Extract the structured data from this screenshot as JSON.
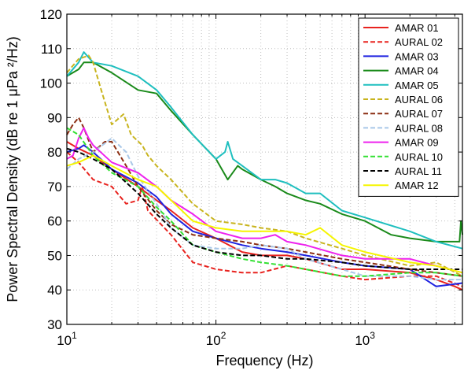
{
  "chart_data": {
    "type": "line",
    "xscale": "log",
    "xlabel": "Frequency (Hz)",
    "ylabel": "Power Spectral Density (dB re 1 μPa ²/Hz)",
    "xlim": [
      10,
      4500
    ],
    "ylim": [
      30,
      120
    ],
    "grid": true,
    "legend_position": "top-right",
    "x_ticks": [
      {
        "value": 10,
        "base": "10",
        "exp": "1"
      },
      {
        "value": 100,
        "base": "10",
        "exp": "2"
      },
      {
        "value": 1000,
        "base": "10",
        "exp": "3"
      }
    ],
    "y_ticks": [
      30,
      40,
      50,
      60,
      70,
      80,
      90,
      100,
      110,
      120
    ],
    "series": [
      {
        "name": "AMAR 01",
        "color": "#e8231f",
        "dash": "solid",
        "points": [
          [
            10,
            83
          ],
          [
            12,
            81
          ],
          [
            15,
            79
          ],
          [
            20,
            75
          ],
          [
            30,
            70
          ],
          [
            40,
            66
          ],
          [
            50,
            63
          ],
          [
            70,
            58
          ],
          [
            100,
            55
          ],
          [
            150,
            51
          ],
          [
            200,
            50
          ],
          [
            300,
            50
          ],
          [
            400,
            49
          ],
          [
            700,
            46
          ],
          [
            1000,
            46
          ],
          [
            2000,
            45
          ],
          [
            3000,
            43
          ],
          [
            4000,
            41
          ],
          [
            4500,
            40
          ]
        ]
      },
      {
        "name": "AURAL 02",
        "color": "#e8231f",
        "dash": "dashed",
        "points": [
          [
            10,
            80
          ],
          [
            12,
            77
          ],
          [
            15,
            72
          ],
          [
            20,
            70
          ],
          [
            25,
            65
          ],
          [
            30,
            66
          ],
          [
            32,
            70
          ],
          [
            35,
            63
          ],
          [
            50,
            56
          ],
          [
            70,
            48
          ],
          [
            100,
            46
          ],
          [
            150,
            45
          ],
          [
            200,
            45
          ],
          [
            300,
            47
          ],
          [
            400,
            46
          ],
          [
            700,
            44
          ],
          [
            1000,
            43
          ],
          [
            2000,
            44
          ],
          [
            3000,
            44
          ],
          [
            4500,
            41
          ]
        ]
      },
      {
        "name": "AMAR 03",
        "color": "#1f22e0",
        "dash": "solid",
        "points": [
          [
            10,
            80
          ],
          [
            12,
            81
          ],
          [
            13,
            82
          ],
          [
            15,
            80
          ],
          [
            20,
            75
          ],
          [
            30,
            71
          ],
          [
            40,
            67
          ],
          [
            50,
            62
          ],
          [
            70,
            57
          ],
          [
            100,
            55
          ],
          [
            150,
            53
          ],
          [
            200,
            52
          ],
          [
            300,
            51
          ],
          [
            400,
            50
          ],
          [
            700,
            48
          ],
          [
            1000,
            47
          ],
          [
            2000,
            46
          ],
          [
            3000,
            41
          ],
          [
            4500,
            42
          ]
        ]
      },
      {
        "name": "AMAR 04",
        "color": "#1a8a1a",
        "dash": "solid",
        "points": [
          [
            10,
            102
          ],
          [
            12,
            104
          ],
          [
            13,
            106
          ],
          [
            15,
            106
          ],
          [
            20,
            103
          ],
          [
            30,
            98
          ],
          [
            40,
            97
          ],
          [
            50,
            92
          ],
          [
            70,
            85
          ],
          [
            100,
            78
          ],
          [
            120,
            72
          ],
          [
            140,
            76
          ],
          [
            150,
            75
          ],
          [
            200,
            72
          ],
          [
            250,
            70
          ],
          [
            300,
            68
          ],
          [
            400,
            66
          ],
          [
            500,
            65
          ],
          [
            700,
            62
          ],
          [
            1000,
            60
          ],
          [
            1500,
            56
          ],
          [
            2000,
            55
          ],
          [
            3000,
            54
          ],
          [
            4300,
            54
          ],
          [
            4400,
            60
          ],
          [
            4500,
            56
          ]
        ]
      },
      {
        "name": "AMAR 05",
        "color": "#1fbfbf",
        "dash": "solid",
        "points": [
          [
            10,
            102
          ],
          [
            12,
            106
          ],
          [
            13,
            109
          ],
          [
            15,
            106
          ],
          [
            20,
            105
          ],
          [
            30,
            102
          ],
          [
            40,
            98
          ],
          [
            50,
            93
          ],
          [
            70,
            85
          ],
          [
            100,
            78
          ],
          [
            115,
            80
          ],
          [
            120,
            83
          ],
          [
            130,
            78
          ],
          [
            150,
            76
          ],
          [
            200,
            72
          ],
          [
            250,
            72
          ],
          [
            300,
            71
          ],
          [
            400,
            68
          ],
          [
            500,
            68
          ],
          [
            700,
            63
          ],
          [
            1000,
            61
          ],
          [
            2000,
            57
          ],
          [
            3000,
            54
          ],
          [
            4500,
            52
          ]
        ]
      },
      {
        "name": "AURAL 06",
        "color": "#c8b41e",
        "dash": "dashed",
        "points": [
          [
            10,
            103
          ],
          [
            12,
            107
          ],
          [
            14,
            108
          ],
          [
            15,
            106
          ],
          [
            17,
            98
          ],
          [
            20,
            88
          ],
          [
            24,
            91
          ],
          [
            27,
            85
          ],
          [
            32,
            82
          ],
          [
            35,
            79
          ],
          [
            40,
            76
          ],
          [
            50,
            72
          ],
          [
            70,
            65
          ],
          [
            100,
            60
          ],
          [
            150,
            59
          ],
          [
            200,
            58
          ],
          [
            300,
            57
          ],
          [
            400,
            55
          ],
          [
            700,
            52
          ],
          [
            1000,
            50
          ],
          [
            2000,
            47
          ],
          [
            3000,
            48
          ],
          [
            4500,
            44
          ]
        ]
      },
      {
        "name": "AURAL 07",
        "color": "#8b2e12",
        "dash": "dashed",
        "points": [
          [
            10,
            85
          ],
          [
            11,
            88
          ],
          [
            12,
            90
          ],
          [
            13,
            87
          ],
          [
            15,
            80
          ],
          [
            18,
            83
          ],
          [
            20,
            83
          ],
          [
            25,
            76
          ],
          [
            30,
            70
          ],
          [
            40,
            63
          ],
          [
            50,
            59
          ],
          [
            70,
            56
          ],
          [
            100,
            55
          ],
          [
            150,
            54
          ],
          [
            200,
            53
          ],
          [
            300,
            52
          ],
          [
            400,
            51
          ],
          [
            700,
            49
          ],
          [
            1000,
            48
          ],
          [
            2000,
            46
          ],
          [
            3000,
            45
          ],
          [
            4500,
            44
          ]
        ]
      },
      {
        "name": "AURAL 08",
        "color": "#a9c8e8",
        "dash": "dashed",
        "points": [
          [
            10,
            75
          ],
          [
            12,
            78
          ],
          [
            15,
            80
          ],
          [
            20,
            84
          ],
          [
            25,
            80
          ],
          [
            30,
            73
          ],
          [
            40,
            65
          ],
          [
            50,
            58
          ],
          [
            70,
            53
          ],
          [
            100,
            52
          ],
          [
            150,
            52
          ],
          [
            200,
            53
          ],
          [
            300,
            52
          ],
          [
            400,
            49
          ],
          [
            700,
            46
          ],
          [
            1000,
            44
          ],
          [
            2000,
            44
          ],
          [
            3000,
            43
          ],
          [
            4500,
            43
          ]
        ]
      },
      {
        "name": "AMAR 09",
        "color": "#ee22ee",
        "dash": "solid",
        "points": [
          [
            10,
            78
          ],
          [
            11,
            79
          ],
          [
            12,
            84
          ],
          [
            13,
            87
          ],
          [
            14,
            84
          ],
          [
            15,
            82
          ],
          [
            20,
            77
          ],
          [
            30,
            74
          ],
          [
            40,
            70
          ],
          [
            50,
            66
          ],
          [
            70,
            62
          ],
          [
            100,
            57
          ],
          [
            150,
            55
          ],
          [
            200,
            55
          ],
          [
            250,
            56
          ],
          [
            300,
            54
          ],
          [
            400,
            53
          ],
          [
            700,
            50
          ],
          [
            1000,
            49
          ],
          [
            2000,
            49
          ],
          [
            3000,
            47
          ],
          [
            4500,
            45
          ]
        ]
      },
      {
        "name": "AURAL 10",
        "color": "#33e033",
        "dash": "dashed",
        "points": [
          [
            10,
            87
          ],
          [
            12,
            85
          ],
          [
            15,
            79
          ],
          [
            20,
            74
          ],
          [
            30,
            70
          ],
          [
            40,
            64
          ],
          [
            50,
            60
          ],
          [
            70,
            53
          ],
          [
            100,
            51
          ],
          [
            150,
            49
          ],
          [
            200,
            48
          ],
          [
            300,
            47
          ],
          [
            400,
            46
          ],
          [
            700,
            44
          ],
          [
            1000,
            44
          ],
          [
            2000,
            45
          ],
          [
            3000,
            45
          ],
          [
            4500,
            44
          ]
        ]
      },
      {
        "name": "AURAL 11",
        "color": "#000000",
        "dash": "dashed",
        "points": [
          [
            10,
            81
          ],
          [
            12,
            80
          ],
          [
            15,
            78
          ],
          [
            20,
            75
          ],
          [
            30,
            68
          ],
          [
            40,
            62
          ],
          [
            50,
            58
          ],
          [
            70,
            53
          ],
          [
            100,
            51
          ],
          [
            150,
            50
          ],
          [
            200,
            50
          ],
          [
            300,
            49
          ],
          [
            400,
            49
          ],
          [
            700,
            48
          ],
          [
            1000,
            47
          ],
          [
            2000,
            46
          ],
          [
            3000,
            46
          ],
          [
            4500,
            46
          ]
        ]
      },
      {
        "name": "AMAR 12",
        "color": "#f5f500",
        "dash": "solid",
        "points": [
          [
            10,
            76
          ],
          [
            12,
            77
          ],
          [
            15,
            79
          ],
          [
            20,
            76
          ],
          [
            30,
            72
          ],
          [
            40,
            70
          ],
          [
            50,
            66
          ],
          [
            70,
            60
          ],
          [
            100,
            58
          ],
          [
            150,
            57
          ],
          [
            200,
            57
          ],
          [
            300,
            57
          ],
          [
            400,
            56
          ],
          [
            500,
            58
          ],
          [
            700,
            53
          ],
          [
            1000,
            51
          ],
          [
            2000,
            48
          ],
          [
            3000,
            47
          ],
          [
            4500,
            45
          ]
        ]
      }
    ]
  }
}
